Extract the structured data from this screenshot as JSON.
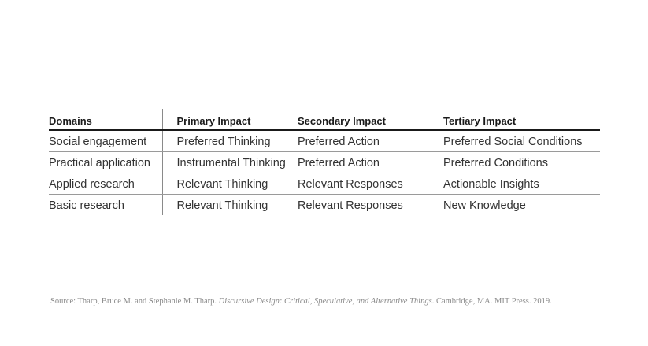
{
  "table": {
    "headers": [
      "Domains",
      "Primary Impact",
      "Secondary Impact",
      "Tertiary Impact"
    ],
    "rows": [
      [
        "Social engagement",
        "Preferred Thinking",
        "Preferred Action",
        "Preferred Social Conditions"
      ],
      [
        "Practical application",
        "Instrumental Thinking",
        "Preferred Action",
        "Preferred Conditions"
      ],
      [
        "Applied research",
        "Relevant Thinking",
        "Relevant Responses",
        "Actionable Insights"
      ],
      [
        "Basic research",
        "Relevant Thinking",
        "Relevant Responses",
        "New Knowledge"
      ]
    ]
  },
  "source": {
    "prefix": "Source: Tharp, Bruce M. and Stephanie M. Tharp. ",
    "title": "Discursive Design: Critical, Speculative, and Alternative Things",
    "suffix": ". Cambridge, MA. MIT Press. 2019."
  }
}
